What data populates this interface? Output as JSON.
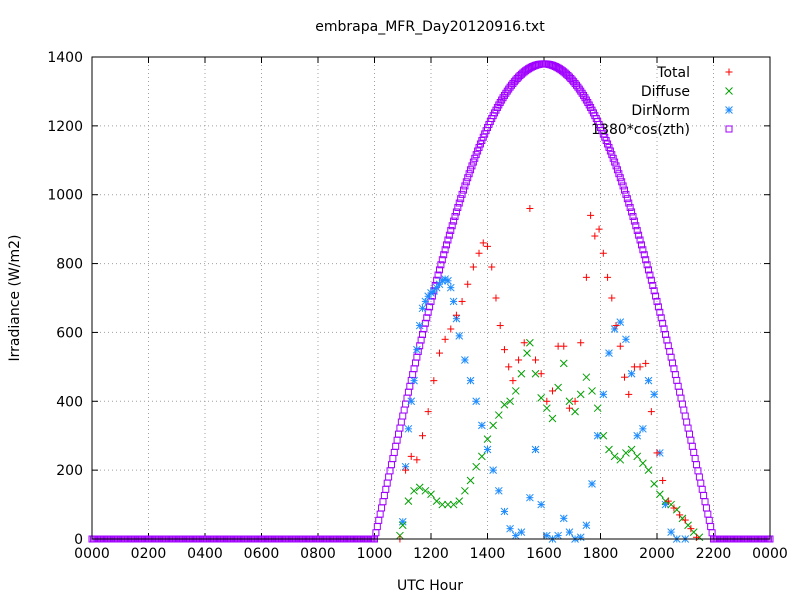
{
  "chart_data": {
    "type": "scatter",
    "title": "embrapa_MFR_Day20120916.txt",
    "xlabel": "UTC Hour",
    "ylabel": "Irradiance (W/m2)",
    "xlim": [
      0,
      24
    ],
    "ylim": [
      0,
      1400
    ],
    "grid": true,
    "legend_position": "top-right",
    "xticks": [
      {
        "value": 0,
        "label": "0000"
      },
      {
        "value": 2,
        "label": "0200"
      },
      {
        "value": 4,
        "label": "0400"
      },
      {
        "value": 6,
        "label": "0600"
      },
      {
        "value": 8,
        "label": "0800"
      },
      {
        "value": 10,
        "label": "1000"
      },
      {
        "value": 12,
        "label": "1200"
      },
      {
        "value": 14,
        "label": "1400"
      },
      {
        "value": 16,
        "label": "1600"
      },
      {
        "value": 18,
        "label": "1800"
      },
      {
        "value": 20,
        "label": "2000"
      },
      {
        "value": 22,
        "label": "2200"
      },
      {
        "value": 24,
        "label": "0000"
      }
    ],
    "yticks": [
      0,
      200,
      400,
      600,
      800,
      1000,
      1200,
      1400
    ],
    "series": [
      {
        "name": "Total",
        "color": "#ff0000",
        "marker": "plus",
        "points": [
          [
            10.9,
            0
          ],
          [
            11.1,
            200
          ],
          [
            11.3,
            240
          ],
          [
            11.5,
            230
          ],
          [
            11.7,
            300
          ],
          [
            11.9,
            370
          ],
          [
            12.1,
            460
          ],
          [
            12.3,
            540
          ],
          [
            12.5,
            580
          ],
          [
            12.7,
            610
          ],
          [
            12.9,
            650
          ],
          [
            13.1,
            690
          ],
          [
            13.3,
            740
          ],
          [
            13.5,
            790
          ],
          [
            13.7,
            830
          ],
          [
            13.85,
            860
          ],
          [
            14.0,
            850
          ],
          [
            14.15,
            790
          ],
          [
            14.3,
            700
          ],
          [
            14.45,
            620
          ],
          [
            14.6,
            550
          ],
          [
            14.75,
            500
          ],
          [
            14.9,
            460
          ],
          [
            15.1,
            520
          ],
          [
            15.3,
            570
          ],
          [
            15.5,
            960
          ],
          [
            15.7,
            520
          ],
          [
            15.9,
            480
          ],
          [
            16.1,
            400
          ],
          [
            16.3,
            430
          ],
          [
            16.5,
            560
          ],
          [
            16.7,
            560
          ],
          [
            16.9,
            380
          ],
          [
            17.1,
            400
          ],
          [
            17.3,
            570
          ],
          [
            17.5,
            760
          ],
          [
            17.65,
            940
          ],
          [
            17.8,
            880
          ],
          [
            17.95,
            900
          ],
          [
            18.1,
            830
          ],
          [
            18.25,
            760
          ],
          [
            18.4,
            700
          ],
          [
            18.55,
            620
          ],
          [
            18.7,
            560
          ],
          [
            18.85,
            470
          ],
          [
            19.0,
            420
          ],
          [
            19.2,
            500
          ],
          [
            19.4,
            500
          ],
          [
            19.6,
            510
          ],
          [
            19.8,
            370
          ],
          [
            20.0,
            250
          ],
          [
            20.2,
            170
          ],
          [
            20.4,
            110
          ],
          [
            20.6,
            90
          ],
          [
            20.8,
            70
          ],
          [
            21.0,
            55
          ],
          [
            21.2,
            30
          ],
          [
            21.4,
            5
          ]
        ]
      },
      {
        "name": "Diffuse",
        "color": "#00a000",
        "marker": "cross",
        "points": [
          [
            10.9,
            10
          ],
          [
            11.0,
            40
          ],
          [
            11.2,
            110
          ],
          [
            11.4,
            140
          ],
          [
            11.6,
            150
          ],
          [
            11.8,
            140
          ],
          [
            12.0,
            130
          ],
          [
            12.2,
            110
          ],
          [
            12.4,
            100
          ],
          [
            12.6,
            100
          ],
          [
            12.8,
            100
          ],
          [
            13.0,
            110
          ],
          [
            13.2,
            140
          ],
          [
            13.4,
            170
          ],
          [
            13.6,
            210
          ],
          [
            13.8,
            240
          ],
          [
            14.0,
            290
          ],
          [
            14.2,
            330
          ],
          [
            14.4,
            360
          ],
          [
            14.6,
            390
          ],
          [
            14.8,
            400
          ],
          [
            15.0,
            430
          ],
          [
            15.2,
            480
          ],
          [
            15.4,
            540
          ],
          [
            15.5,
            570
          ],
          [
            15.7,
            480
          ],
          [
            15.9,
            410
          ],
          [
            16.1,
            380
          ],
          [
            16.3,
            350
          ],
          [
            16.5,
            440
          ],
          [
            16.7,
            510
          ],
          [
            16.9,
            400
          ],
          [
            17.1,
            370
          ],
          [
            17.3,
            420
          ],
          [
            17.5,
            470
          ],
          [
            17.7,
            430
          ],
          [
            17.9,
            380
          ],
          [
            18.1,
            300
          ],
          [
            18.3,
            260
          ],
          [
            18.5,
            240
          ],
          [
            18.7,
            230
          ],
          [
            18.9,
            250
          ],
          [
            19.1,
            260
          ],
          [
            19.3,
            240
          ],
          [
            19.5,
            220
          ],
          [
            19.7,
            200
          ],
          [
            19.9,
            160
          ],
          [
            20.1,
            130
          ],
          [
            20.3,
            110
          ],
          [
            20.5,
            100
          ],
          [
            20.7,
            85
          ],
          [
            20.9,
            60
          ],
          [
            21.1,
            40
          ],
          [
            21.3,
            20
          ],
          [
            21.5,
            5
          ]
        ]
      },
      {
        "name": "DirNorm",
        "color": "#1e8cff",
        "marker": "star",
        "points": [
          [
            11.0,
            50
          ],
          [
            11.1,
            210
          ],
          [
            11.2,
            320
          ],
          [
            11.3,
            400
          ],
          [
            11.4,
            460
          ],
          [
            11.5,
            550
          ],
          [
            11.6,
            620
          ],
          [
            11.7,
            670
          ],
          [
            11.8,
            690
          ],
          [
            11.9,
            705
          ],
          [
            12.0,
            715
          ],
          [
            12.1,
            720
          ],
          [
            12.2,
            730
          ],
          [
            12.3,
            740
          ],
          [
            12.4,
            750
          ],
          [
            12.5,
            755
          ],
          [
            12.6,
            750
          ],
          [
            12.7,
            730
          ],
          [
            12.8,
            690
          ],
          [
            12.9,
            640
          ],
          [
            13.0,
            590
          ],
          [
            13.2,
            520
          ],
          [
            13.4,
            460
          ],
          [
            13.6,
            400
          ],
          [
            13.8,
            330
          ],
          [
            14.0,
            260
          ],
          [
            14.2,
            200
          ],
          [
            14.4,
            140
          ],
          [
            14.6,
            80
          ],
          [
            14.8,
            30
          ],
          [
            15.0,
            10
          ],
          [
            15.2,
            20
          ],
          [
            15.5,
            120
          ],
          [
            15.7,
            260
          ],
          [
            15.9,
            100
          ],
          [
            16.1,
            10
          ],
          [
            16.3,
            0
          ],
          [
            16.5,
            10
          ],
          [
            16.7,
            60
          ],
          [
            16.9,
            20
          ],
          [
            17.1,
            0
          ],
          [
            17.3,
            5
          ],
          [
            17.5,
            40
          ],
          [
            17.7,
            160
          ],
          [
            17.9,
            300
          ],
          [
            18.1,
            420
          ],
          [
            18.3,
            540
          ],
          [
            18.5,
            610
          ],
          [
            18.7,
            630
          ],
          [
            18.9,
            580
          ],
          [
            19.1,
            480
          ],
          [
            19.3,
            300
          ],
          [
            19.5,
            320
          ],
          [
            19.7,
            460
          ],
          [
            19.9,
            420
          ],
          [
            20.1,
            250
          ],
          [
            20.3,
            100
          ],
          [
            20.5,
            20
          ],
          [
            20.7,
            0
          ],
          [
            21.0,
            0
          ]
        ]
      },
      {
        "name": "1380*cos(zth)",
        "color": "#a000ff",
        "marker": "square",
        "formula": {
          "amplitude": 1380,
          "sunrise": 10.0,
          "solar_noon": 16.0,
          "sunset": 22.0
        }
      }
    ]
  }
}
